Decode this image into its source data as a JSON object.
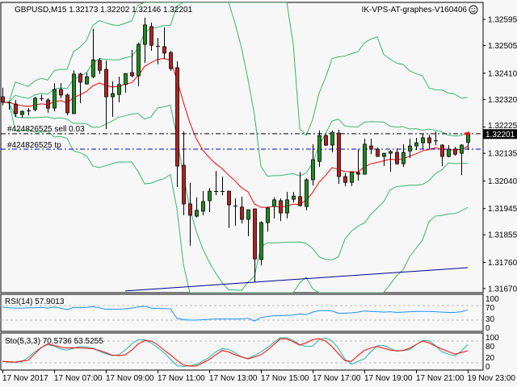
{
  "header": {
    "symbol_info": "GBPUSD,M15  1.32173 1.32202 1.32146 1.32201",
    "expert_name": "IK-VPS-AT-graphes-V160406",
    "expert_icon": "smiley-icon"
  },
  "price_axis": {
    "ticks": [
      "1.32595",
      "1.32505",
      "1.32410",
      "1.32320",
      "1.32225",
      "1.32135",
      "1.32040",
      "1.31945",
      "1.31855",
      "1.31760",
      "1.31670"
    ],
    "current_price_label": "1.32201",
    "current_price": 1.32201
  },
  "orders": {
    "sell_label": "#424826525 sell 0.03",
    "sell_price": 1.32202,
    "tp_label": "#424826525 tp",
    "tp_price": 1.32149
  },
  "time_axis": [
    "17 Nov 2017",
    "17 Nov 07:00",
    "17 Nov 09:00",
    "17 Nov 11:00",
    "17 Nov 13:00",
    "17 Nov 15:00",
    "17 Nov 17:00",
    "17 Nov 19:00",
    "17 Nov 21:00",
    "19 Nov 23:00"
  ],
  "rsi": {
    "label": "RSI(14) 57.9013",
    "levels_labels": [
      "100",
      "70",
      "30",
      "0"
    ]
  },
  "stoch": {
    "label": "Sto(5,3,3) 70.5736 53.5255",
    "levels_labels": [
      "100",
      "80",
      "20",
      "0"
    ]
  },
  "colors": {
    "bull": "#1f8a1f",
    "bear": "#b22222",
    "bands": "#3cb371",
    "ma": "#ff0000",
    "long_ma": "#00008b",
    "rsi": "#1e90ff",
    "stoch_main": "#20b2aa",
    "stoch_signal": "#ff0000",
    "tp_line": "#0000cd",
    "order_line": "#000000"
  },
  "chart_data": {
    "type": "candlestick",
    "symbol": "GBPUSD",
    "timeframe": "M15",
    "ylim": [
      1.3167,
      1.32595
    ],
    "candles_ohlc": [
      [
        1.32329,
        1.3236,
        1.32299,
        1.3231
      ],
      [
        1.3231,
        1.32312,
        1.32285,
        1.3231
      ],
      [
        1.32304,
        1.32318,
        1.3226,
        1.32271
      ],
      [
        1.32268,
        1.32282,
        1.32257,
        1.32279
      ],
      [
        1.32282,
        1.3229,
        1.32265,
        1.32282
      ],
      [
        1.32285,
        1.32329,
        1.32279,
        1.32324
      ],
      [
        1.32324,
        1.32337,
        1.32315,
        1.32324
      ],
      [
        1.32318,
        1.32324,
        1.32274,
        1.3229
      ],
      [
        1.3229,
        1.32376,
        1.32279,
        1.32354
      ],
      [
        1.32354,
        1.32376,
        1.32324,
        1.32335
      ],
      [
        1.32335,
        1.3234,
        1.32265,
        1.32274
      ],
      [
        1.32271,
        1.3242,
        1.32271,
        1.32407
      ],
      [
        1.32407,
        1.32412,
        1.32307,
        1.32379
      ],
      [
        1.32373,
        1.32412,
        1.32371,
        1.32398
      ],
      [
        1.32398,
        1.32562,
        1.32393,
        1.32456
      ],
      [
        1.32454,
        1.32462,
        1.32407,
        1.3242
      ],
      [
        1.32423,
        1.32454,
        1.32218,
        1.32329
      ],
      [
        1.32329,
        1.32382,
        1.3226,
        1.3234
      ],
      [
        1.32337,
        1.32398,
        1.3231,
        1.32371
      ],
      [
        1.32371,
        1.32409,
        1.32343,
        1.32409
      ],
      [
        1.32412,
        1.3249,
        1.32396,
        1.32401
      ],
      [
        1.32401,
        1.32515,
        1.32365,
        1.32509
      ],
      [
        1.32509,
        1.32601,
        1.32445,
        1.32576
      ],
      [
        1.3257,
        1.32584,
        1.32487,
        1.32506
      ],
      [
        1.32504,
        1.32531,
        1.3244,
        1.32504
      ],
      [
        1.32501,
        1.32567,
        1.32459,
        1.32479
      ],
      [
        1.32481,
        1.32487,
        1.32418,
        1.32426
      ],
      [
        1.32429,
        1.32451,
        1.32019,
        1.32091
      ],
      [
        1.32094,
        1.3221,
        1.31922,
        1.31961
      ],
      [
        1.31961,
        1.32033,
        1.31817,
        1.31922
      ],
      [
        1.31919,
        1.31983,
        1.31914,
        1.31939
      ],
      [
        1.31936,
        1.32005,
        1.31922,
        1.31969
      ],
      [
        1.31972,
        1.32016,
        1.31933,
        1.32005
      ],
      [
        1.32005,
        1.32074,
        1.31991,
        1.32005
      ],
      [
        1.32005,
        1.32055,
        1.31991,
        1.32005
      ],
      [
        1.32005,
        1.32005,
        1.31878,
        1.31958
      ],
      [
        1.31955,
        1.3198,
        1.31886,
        1.31955
      ],
      [
        1.3195,
        1.31986,
        1.31894,
        1.31908
      ],
      [
        1.31908,
        1.31941,
        1.3185,
        1.31941
      ],
      [
        1.31944,
        1.31944,
        1.31692,
        1.31772
      ],
      [
        1.3177,
        1.31902,
        1.3175,
        1.31897
      ],
      [
        1.31897,
        1.31952,
        1.31866,
        1.31947
      ],
      [
        1.31952,
        1.31983,
        1.31911,
        1.31975
      ],
      [
        1.31972,
        1.3198,
        1.31902,
        1.3193
      ],
      [
        1.3193,
        1.32002,
        1.31911,
        1.31975
      ],
      [
        1.31977,
        1.32002,
        1.31966,
        1.31988
      ],
      [
        1.31986,
        1.32071,
        1.31952,
        1.31955
      ],
      [
        1.31952,
        1.32049,
        1.31939,
        1.32044
      ],
      [
        1.32044,
        1.32166,
        1.32024,
        1.32113
      ],
      [
        1.32107,
        1.32213,
        1.32088,
        1.32196
      ],
      [
        1.32196,
        1.32199,
        1.3216,
        1.32163
      ],
      [
        1.32163,
        1.32213,
        1.32138,
        1.32207
      ],
      [
        1.32204,
        1.32216,
        1.3203,
        1.32055
      ],
      [
        1.32055,
        1.32066,
        1.32022,
        1.32035
      ],
      [
        1.32035,
        1.32071,
        1.32022,
        1.32071
      ],
      [
        1.32069,
        1.32149,
        1.32041,
        1.32063
      ],
      [
        1.32063,
        1.32185,
        1.32063,
        1.32166
      ],
      [
        1.3216,
        1.32185,
        1.32132,
        1.32149
      ],
      [
        1.32149,
        1.32155,
        1.32124,
        1.32124
      ],
      [
        1.32124,
        1.32135,
        1.32091,
        1.32135
      ],
      [
        1.32135,
        1.32146,
        1.32071,
        1.32141
      ],
      [
        1.32138,
        1.32152,
        1.32096,
        1.32099
      ],
      [
        1.32099,
        1.32166,
        1.32088,
        1.32138
      ],
      [
        1.32143,
        1.32185,
        1.32119,
        1.3216
      ],
      [
        1.3216,
        1.32188,
        1.32146,
        1.32171
      ],
      [
        1.32171,
        1.32202,
        1.32149,
        1.32188
      ],
      [
        1.32188,
        1.32199,
        1.32149,
        1.32171
      ],
      [
        1.32179,
        1.3221,
        1.32163,
        1.32179
      ],
      [
        1.32163,
        1.32166,
        1.32091,
        1.32124
      ],
      [
        1.32124,
        1.32163,
        1.32121,
        1.32149
      ],
      [
        1.32149,
        1.32157,
        1.32127,
        1.32132
      ],
      [
        1.32135,
        1.32166,
        1.3206,
        1.32163
      ],
      [
        1.32173,
        1.32202,
        1.32146,
        1.32201
      ]
    ],
    "long_ma_points": [
      [
        19,
        1.31662
      ],
      [
        72,
        1.31742
      ]
    ],
    "rsi_values": [
      66,
      64,
      63,
      63,
      64,
      64,
      65,
      63,
      66,
      63,
      59,
      65,
      64,
      65,
      67,
      64,
      60,
      60,
      60,
      61,
      63,
      66,
      68,
      63,
      62,
      62,
      61,
      35,
      31,
      30,
      30,
      31,
      32,
      33,
      33,
      33,
      33,
      33,
      35,
      27,
      37,
      40,
      42,
      42,
      43,
      44,
      47,
      45,
      52,
      56,
      56,
      55,
      49,
      49,
      50,
      52,
      55,
      54,
      53,
      52,
      53,
      51,
      52,
      53,
      54,
      54,
      54,
      53,
      52,
      51,
      51,
      53,
      57.9013
    ],
    "stoch_main": [
      24,
      22,
      21.5,
      23,
      35,
      50,
      62,
      70,
      66,
      58,
      55,
      60,
      65,
      63,
      60,
      52,
      45,
      40,
      42,
      55,
      72,
      84,
      84,
      75,
      62,
      48,
      30,
      12,
      10,
      12,
      15,
      25,
      35,
      50,
      59,
      57,
      48,
      36,
      32,
      40,
      50,
      62,
      76,
      89,
      89,
      82,
      70,
      65,
      66,
      84,
      89,
      80,
      60,
      30,
      16,
      24,
      31,
      50,
      67,
      68,
      60,
      52,
      54,
      56,
      70,
      81,
      81,
      68,
      50,
      44,
      39,
      52,
      70.5736
    ],
    "stoch_signal": [
      24,
      23,
      22,
      25,
      27,
      45,
      62,
      72,
      68,
      63,
      61,
      61,
      61,
      60,
      59,
      54,
      48,
      41,
      40,
      42,
      55,
      72,
      81,
      80,
      70,
      55,
      42,
      27,
      14,
      11,
      11,
      20,
      29,
      42,
      54,
      50,
      42,
      36,
      31,
      36,
      42,
      55,
      70,
      86,
      86,
      78,
      69,
      75,
      84,
      87,
      80,
      65,
      45,
      26,
      24,
      40,
      54,
      61,
      65,
      60,
      55,
      53,
      54,
      60,
      70,
      80,
      75,
      66,
      58,
      51,
      44,
      48,
      53.5255
    ]
  }
}
